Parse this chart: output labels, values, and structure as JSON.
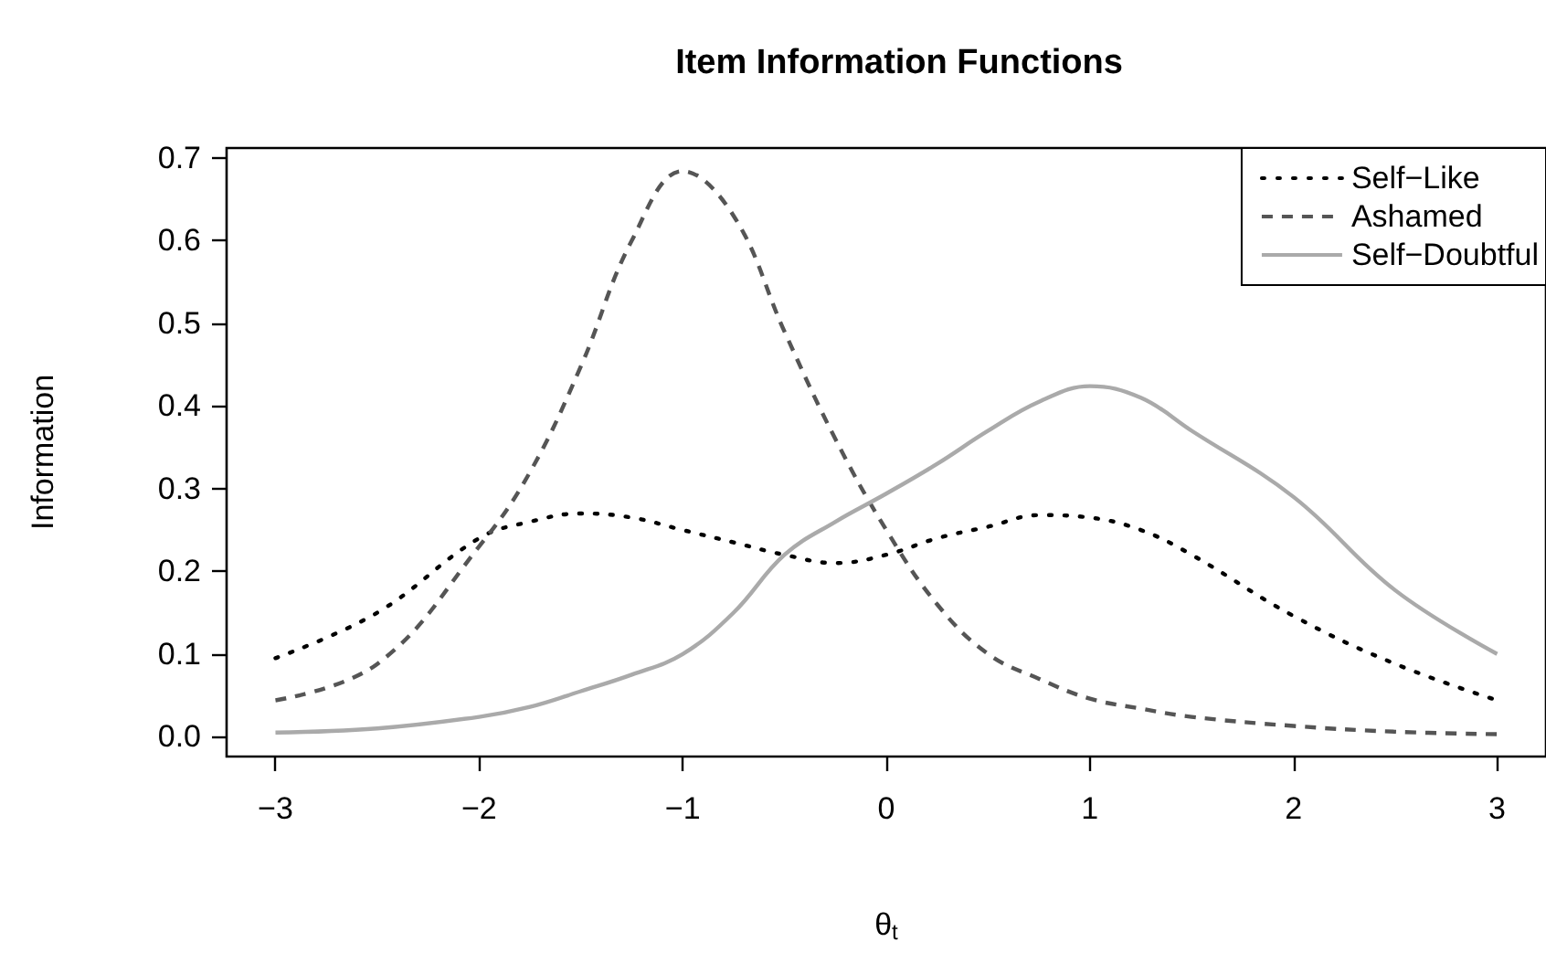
{
  "chart_data": {
    "type": "line",
    "title": "Item Information Functions",
    "xlabel": "θ$_{t}$",
    "ylabel": "Information",
    "x": [
      -3,
      -2.5,
      -2,
      -1.75,
      -1.5,
      -1.25,
      -1,
      -0.75,
      -0.5,
      -0.25,
      0,
      0.25,
      0.5,
      0.75,
      1,
      1.25,
      1.5,
      2,
      2.5,
      3
    ],
    "series": [
      {
        "name": "Self−Like",
        "color": "#000000",
        "line_style": "dotted",
        "values": [
          0.095,
          0.15,
          0.24,
          0.26,
          0.27,
          0.265,
          0.25,
          0.235,
          0.22,
          0.21,
          0.22,
          0.24,
          0.254,
          0.268,
          0.265,
          0.25,
          0.22,
          0.146,
          0.088,
          0.044
        ]
      },
      {
        "name": "Ashamed",
        "color": "#555555",
        "line_style": "dashed",
        "values": [
          0.044,
          0.088,
          0.23,
          0.32,
          0.448,
          0.6,
          0.684,
          0.63,
          0.49,
          0.36,
          0.25,
          0.16,
          0.1,
          0.07,
          0.046,
          0.034,
          0.024,
          0.013,
          0.006,
          0.003
        ]
      },
      {
        "name": "Self−Doubtful",
        "color": "#aaaaaa",
        "line_style": "solid",
        "values": [
          0.005,
          0.01,
          0.024,
          0.036,
          0.055,
          0.075,
          0.1,
          0.15,
          0.22,
          0.26,
          0.294,
          0.33,
          0.37,
          0.405,
          0.424,
          0.41,
          0.37,
          0.29,
          0.177,
          0.1
        ]
      }
    ],
    "xlim": [
      -3.24,
      3.24
    ],
    "xticks": [
      {
        "value": -3,
        "label": "−3"
      },
      {
        "value": -2,
        "label": "−2"
      },
      {
        "value": -1,
        "label": "−1"
      },
      0,
      1,
      2,
      3
    ],
    "ylim": [
      -0.024,
      0.712
    ],
    "yticks": [
      {
        "value": 0,
        "label": "0.0"
      },
      0.1,
      0.2,
      0.3,
      0.4,
      0.5,
      0.6,
      0.7
    ],
    "legend": "top right",
    "marker": "none",
    "grid": false
  }
}
